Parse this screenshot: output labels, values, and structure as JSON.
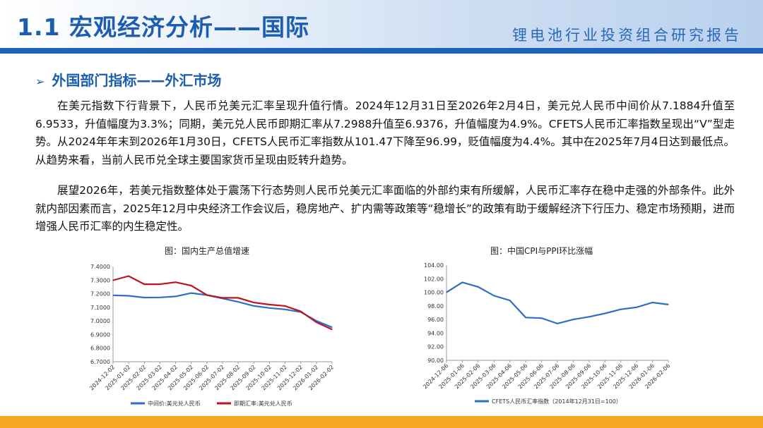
{
  "header": {
    "title": "1.1 宏观经济分析——国际",
    "subtitle": "锂电池行业投资组合研究报告"
  },
  "section": {
    "arrow": "➢",
    "title": "外国部门指标——外汇市场"
  },
  "paragraphs": [
    "在美元指数下行背景下，人民币兑美元汇率呈现升值行情。2024年12月31日至2026年2月4日，美元兑人民币中间价从7.1884升值至6.9533，升值幅度为3.3%；同期，美元兑人民币即期汇率从7.2988升值至6.9376，升值幅度为4.9%。CFETS人民币汇率指数呈现出“V”型走势。从2024年年末到2026年1月30日，CFETS人民币汇率指数从101.47下降至96.99，贬值幅度为4.4%。其中在2025年7月4日达到最低点。从趋势来看，当前人民币兑全球主要国家货币呈现由贬转升趋势。",
    "展望2026年，若美元指数整体处于震荡下行态势则人民币兑美元汇率面临的外部约束有所缓解，人民币汇率存在稳中走强的外部条件。此外就内部因素而言，2025年12月中央经济工作会议后，稳房地产、扩内需等政策等“稳增长”的政策有助于缓解经济下行压力、稳定市场预期，进而增强人民币汇率的内生稳定性。"
  ],
  "chart_data": [
    {
      "type": "line",
      "title": "图：国内生产总值增速",
      "ylim": [
        6.7,
        7.4
      ],
      "yticks": [
        "7.4000",
        "7.3000",
        "7.2000",
        "7.1000",
        "7.0000",
        "6.9000",
        "6.8000",
        "6.7000"
      ],
      "categories": [
        "2024-12-02",
        "2025-01-02",
        "2025-02-02",
        "2025-03-02",
        "2025-04-02",
        "2025-05-02",
        "2025-06-02",
        "2025-07-02",
        "2025-08-02",
        "2025-09-02",
        "2025-10-02",
        "2025-11-02",
        "2025-12-02",
        "2026-01-02",
        "2026-02-02"
      ],
      "grid": false,
      "legend": "bottom",
      "series": [
        {
          "name": "中间价:美元兑人民币",
          "color": "#2a6fc4",
          "values": [
            7.1884,
            7.185,
            7.172,
            7.173,
            7.18,
            7.205,
            7.19,
            7.165,
            7.14,
            7.11,
            7.095,
            7.085,
            7.065,
            7.0,
            6.953
          ]
        },
        {
          "name": "即期汇率:美元兑人民币",
          "color": "#c0121c",
          "values": [
            7.2988,
            7.33,
            7.27,
            7.27,
            7.285,
            7.26,
            7.19,
            7.17,
            7.17,
            7.135,
            7.12,
            7.11,
            7.07,
            6.99,
            6.9376
          ]
        }
      ]
    },
    {
      "type": "line",
      "title": "图：中国CPI与PPI环比涨幅",
      "ylim": [
        90,
        104
      ],
      "yticks": [
        "104.00",
        "102.00",
        "100.00",
        "98.00",
        "96.00",
        "94.00",
        "92.00",
        "90.00"
      ],
      "categories": [
        "2024-12-06",
        "2025-01-06",
        "2025-02-06",
        "2025-03-06",
        "2025-04-06",
        "2025-05-06",
        "2025-06-06",
        "2025-07-06",
        "2025-08-06",
        "2025-09-06",
        "2025-10-06",
        "2025-11-06",
        "2025-12-06",
        "2026-01-06",
        "2026-02-06"
      ],
      "grid": false,
      "legend": "bottom",
      "series": [
        {
          "name": "CFETS人民币汇率指数（2014年12月31日=100）",
          "color": "#2a6fc4",
          "values": [
            100.0,
            101.47,
            100.8,
            99.5,
            98.8,
            96.3,
            96.2,
            95.4,
            96.0,
            96.4,
            96.9,
            97.5,
            97.8,
            98.5,
            98.2
          ]
        }
      ]
    }
  ]
}
